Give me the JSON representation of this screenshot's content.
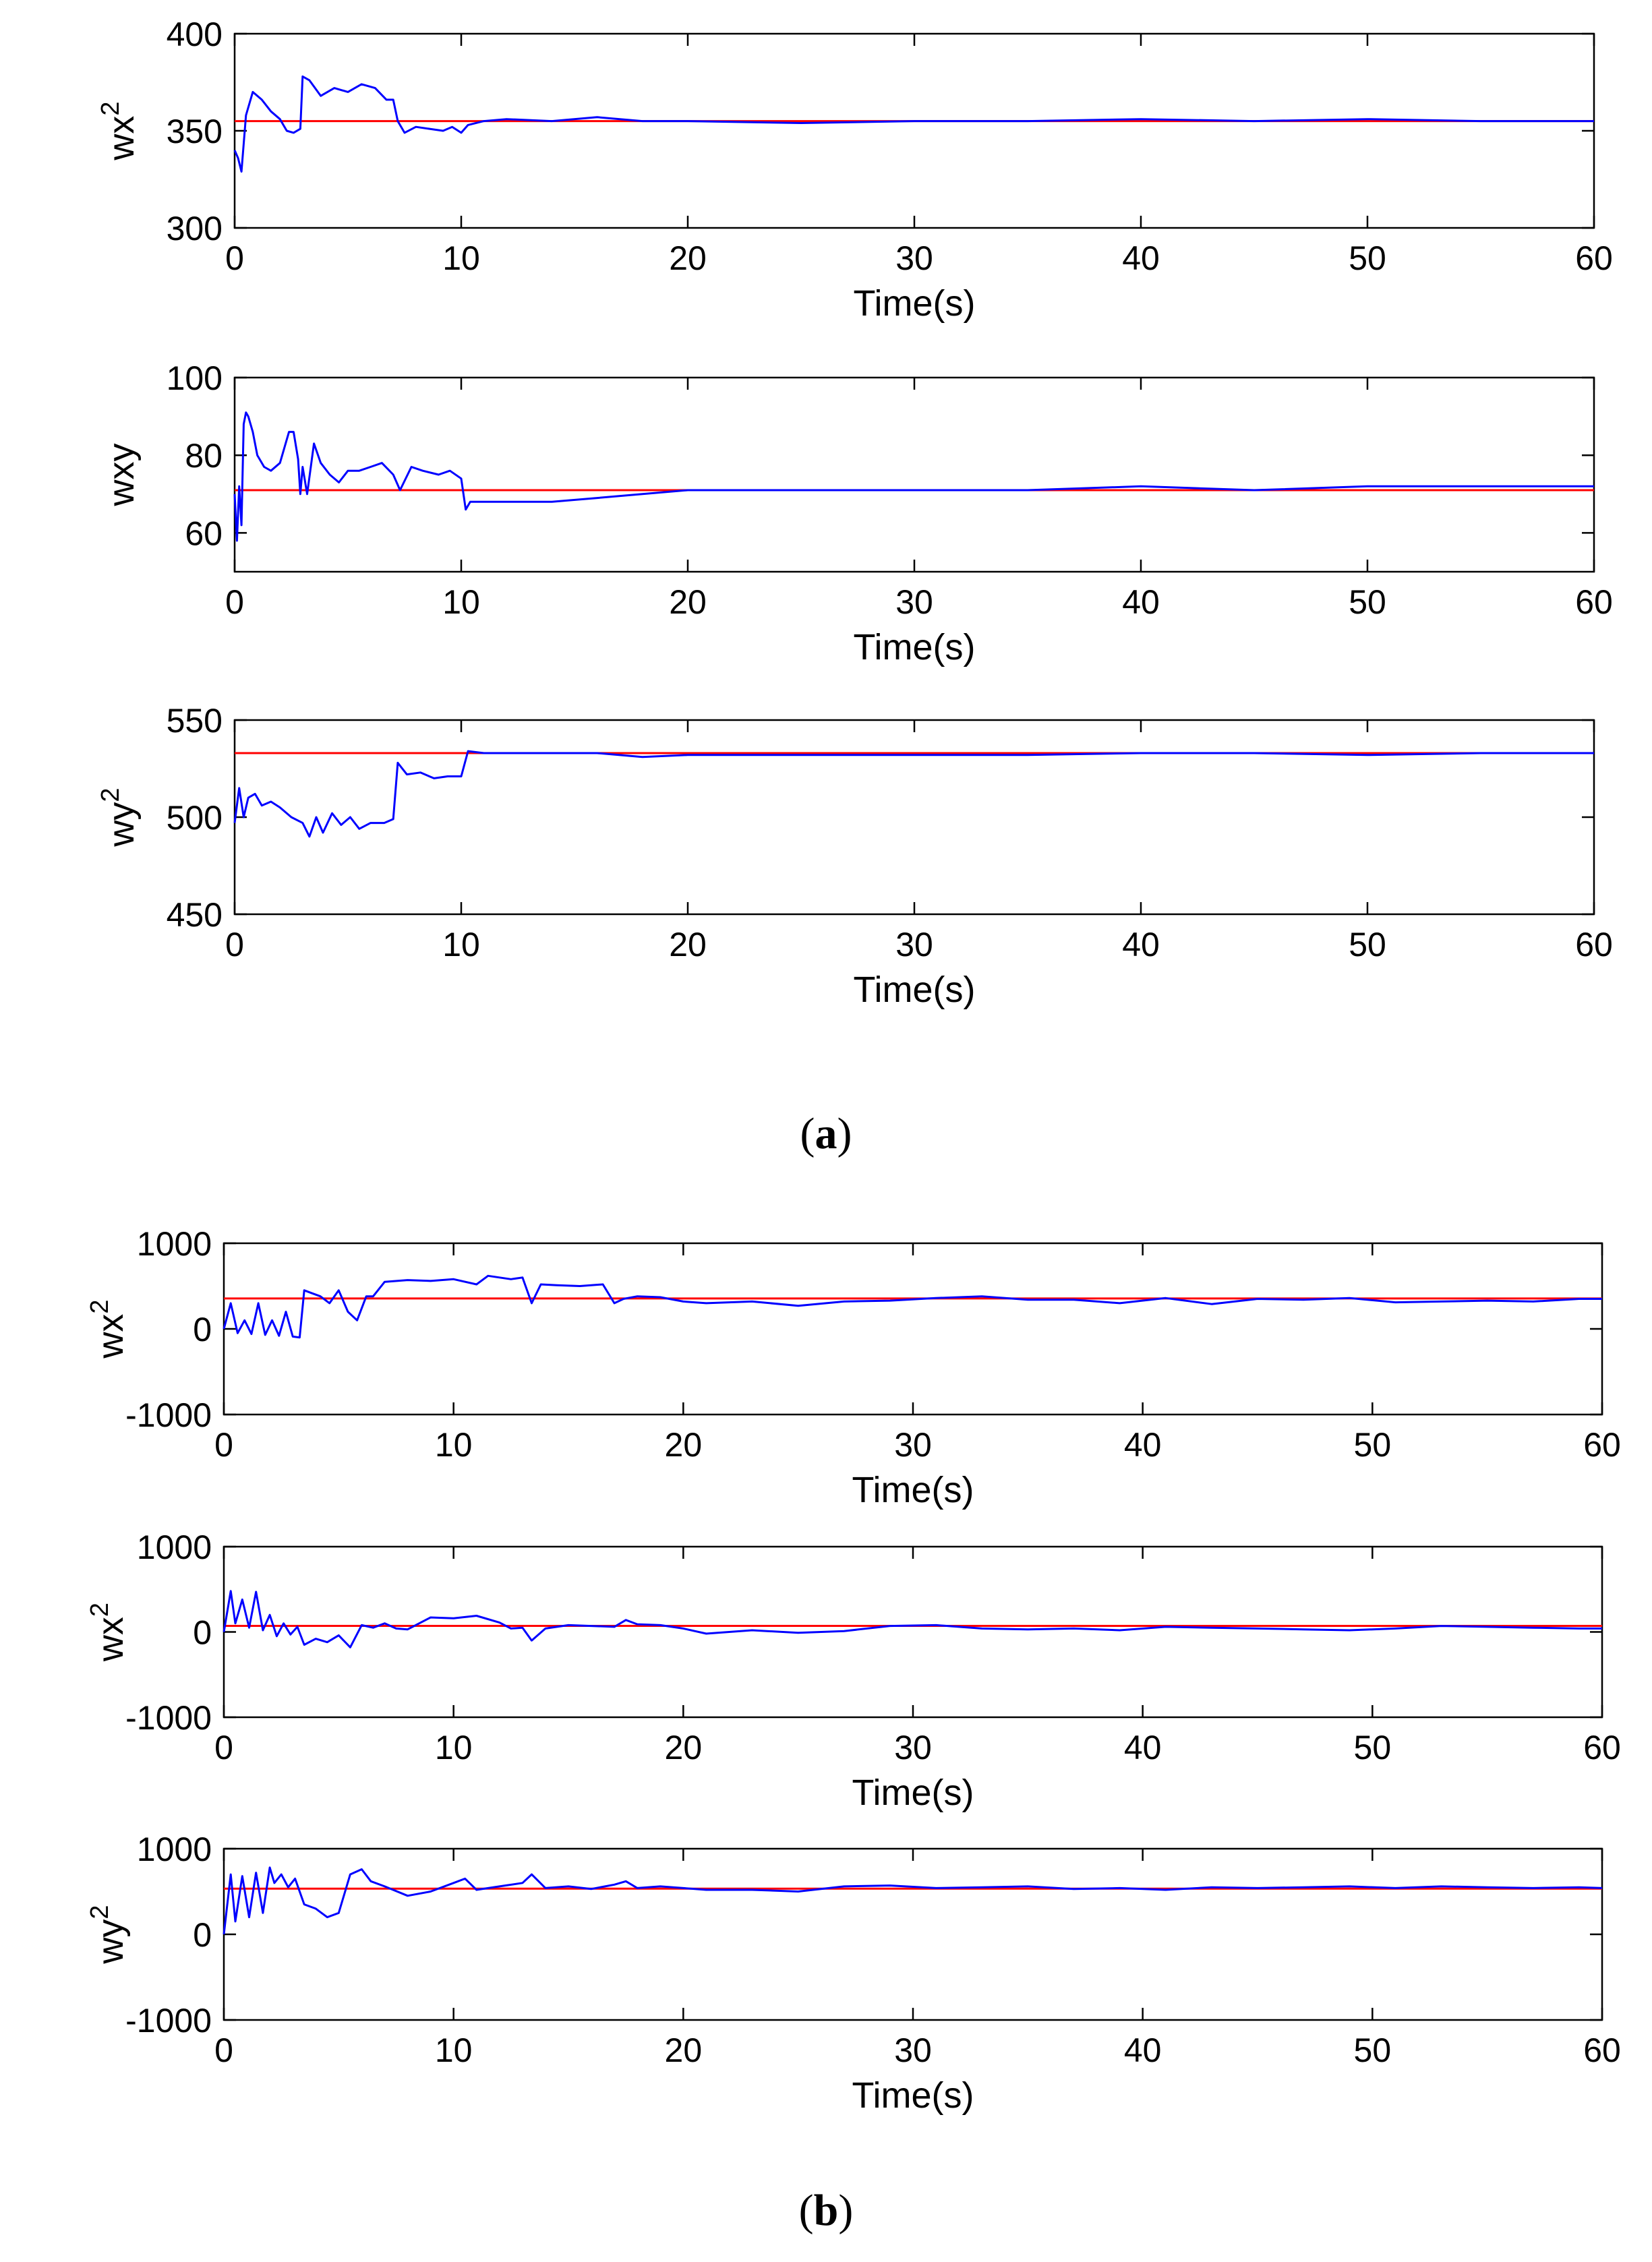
{
  "figure": {
    "panel_a_label": {
      "open": "(",
      "letter": "a",
      "close": ")"
    },
    "panel_b_label": {
      "open": "(",
      "letter": "b",
      "close": ")"
    },
    "colors": {
      "estimate": "#0000ff",
      "reference": "#ff0000",
      "axes": "#000000"
    }
  },
  "chart_data": [
    {
      "panel": "a",
      "index": 1,
      "type": "line",
      "xlabel": "Time(s)",
      "ylabel": "wx",
      "ylabel_sup": "2",
      "xlim": [
        0,
        60
      ],
      "ylim": [
        300,
        400
      ],
      "xticks": [
        0,
        10,
        20,
        30,
        40,
        50,
        60
      ],
      "yticks": [
        300,
        350,
        400
      ],
      "reference": 355,
      "series": [
        {
          "name": "estimate",
          "x": [
            0,
            0.15,
            0.3,
            0.5,
            0.8,
            1.2,
            1.6,
            2.0,
            2.3,
            2.6,
            2.9,
            3.0,
            3.3,
            3.8,
            4.4,
            5.0,
            5.6,
            6.2,
            6.7,
            7.0,
            7.2,
            7.5,
            8.0,
            8.6,
            9.2,
            9.6,
            10.0,
            10.3,
            11,
            12,
            14,
            16,
            18,
            20,
            25,
            30,
            35,
            40,
            45,
            50,
            55,
            60
          ],
          "y": [
            340,
            336,
            329,
            358,
            370,
            366,
            360,
            356,
            350,
            349,
            351,
            378,
            376,
            368,
            372,
            370,
            374,
            372,
            366,
            366,
            355,
            349,
            352,
            351,
            350,
            352,
            349,
            353,
            355,
            356,
            355,
            357,
            355,
            355,
            354,
            355,
            355,
            356,
            355,
            356,
            355,
            355
          ]
        }
      ]
    },
    {
      "panel": "a",
      "index": 2,
      "type": "line",
      "xlabel": "Time(s)",
      "ylabel": "wxy",
      "ylabel_sup": "",
      "xlim": [
        0,
        60
      ],
      "ylim": [
        50,
        100
      ],
      "xticks": [
        0,
        10,
        20,
        30,
        40,
        50,
        60
      ],
      "yticks": [
        60,
        80,
        100
      ],
      "reference": 71,
      "series": [
        {
          "name": "estimate",
          "x": [
            0,
            0.1,
            0.2,
            0.3,
            0.4,
            0.5,
            0.6,
            0.8,
            1.0,
            1.3,
            1.6,
            2.0,
            2.4,
            2.6,
            2.8,
            2.9,
            3.0,
            3.2,
            3.5,
            3.8,
            4.2,
            4.6,
            5.0,
            5.5,
            6.0,
            6.5,
            7.0,
            7.3,
            7.8,
            8.3,
            9.0,
            9.5,
            10.0,
            10.2,
            10.4,
            11,
            12,
            14,
            16,
            18,
            20,
            25,
            30,
            35,
            40,
            45,
            50,
            55,
            60
          ],
          "y": [
            70,
            58,
            72,
            62,
            88,
            91,
            90,
            86,
            80,
            77,
            76,
            78,
            86,
            86,
            79,
            70,
            77,
            70,
            83,
            78,
            75,
            73,
            76,
            76,
            77,
            78,
            75,
            71,
            77,
            76,
            75,
            76,
            74,
            66,
            68,
            68,
            68,
            68,
            69,
            70,
            71,
            71,
            71,
            71,
            72,
            71,
            72,
            72,
            72
          ]
        }
      ]
    },
    {
      "panel": "a",
      "index": 3,
      "type": "line",
      "xlabel": "Time(s)",
      "ylabel": "wy",
      "ylabel_sup": "2",
      "xlim": [
        0,
        60
      ],
      "ylim": [
        450,
        550
      ],
      "xticks": [
        0,
        10,
        20,
        30,
        40,
        50,
        60
      ],
      "yticks": [
        450,
        500,
        550
      ],
      "reference": 533,
      "series": [
        {
          "name": "estimate",
          "x": [
            0,
            0.2,
            0.4,
            0.6,
            0.9,
            1.2,
            1.6,
            2.0,
            2.5,
            3.0,
            3.3,
            3.6,
            3.9,
            4.3,
            4.7,
            5.1,
            5.5,
            6.0,
            6.6,
            7.0,
            7.2,
            7.6,
            8.2,
            8.8,
            9.4,
            10.0,
            10.3,
            11,
            12,
            14,
            16,
            18,
            20,
            25,
            30,
            35,
            40,
            45,
            50,
            55,
            60
          ],
          "y": [
            497,
            515,
            500,
            510,
            512,
            506,
            508,
            505,
            500,
            497,
            490,
            500,
            492,
            502,
            496,
            500,
            494,
            497,
            497,
            499,
            528,
            522,
            523,
            520,
            521,
            521,
            534,
            533,
            533,
            533,
            533,
            531,
            532,
            532,
            532,
            532,
            533,
            533,
            532,
            533,
            533
          ]
        }
      ]
    },
    {
      "panel": "b",
      "index": 1,
      "type": "line",
      "xlabel": "Time(s)",
      "ylabel": "wx",
      "ylabel_sup": "2",
      "xlim": [
        0,
        60
      ],
      "ylim": [
        -1000,
        1000
      ],
      "xticks": [
        0,
        10,
        20,
        30,
        40,
        50,
        60
      ],
      "yticks": [
        -1000,
        0,
        1000
      ],
      "reference": 355,
      "series": [
        {
          "name": "estimate",
          "x": [
            0,
            0.3,
            0.6,
            0.9,
            1.2,
            1.5,
            1.8,
            2.1,
            2.4,
            2.7,
            3.0,
            3.3,
            3.5,
            3.8,
            4.2,
            4.6,
            5.0,
            5.4,
            5.8,
            6.2,
            6.5,
            7.0,
            8,
            9,
            10,
            11,
            11.5,
            12.5,
            13,
            13.4,
            13.8,
            14.5,
            15.5,
            16.5,
            17,
            17.4,
            18,
            19,
            20,
            21,
            23,
            25,
            27,
            29,
            31,
            33,
            35,
            37,
            39,
            41,
            43,
            45,
            47,
            49,
            51,
            53,
            55,
            57,
            59,
            60
          ],
          "y": [
            0,
            300,
            -50,
            100,
            -60,
            300,
            -70,
            100,
            -80,
            200,
            -90,
            -100,
            450,
            420,
            380,
            300,
            450,
            200,
            100,
            380,
            380,
            550,
            570,
            560,
            580,
            520,
            620,
            580,
            600,
            300,
            520,
            510,
            500,
            520,
            300,
            350,
            380,
            370,
            320,
            300,
            320,
            270,
            320,
            330,
            360,
            380,
            340,
            340,
            300,
            360,
            290,
            350,
            340,
            360,
            310,
            320,
            330,
            320,
            350,
            350
          ]
        }
      ]
    },
    {
      "panel": "b",
      "index": 2,
      "type": "line",
      "xlabel": "Time(s)",
      "ylabel": "wx",
      "ylabel_sup": "2",
      "xlim": [
        0,
        60
      ],
      "ylim": [
        -1000,
        1000
      ],
      "xticks": [
        0,
        10,
        20,
        30,
        40,
        50,
        60
      ],
      "yticks": [
        -1000,
        0,
        1000
      ],
      "reference": 71,
      "series": [
        {
          "name": "estimate",
          "x": [
            0,
            0.3,
            0.5,
            0.8,
            1.1,
            1.4,
            1.7,
            2.0,
            2.3,
            2.6,
            2.9,
            3.2,
            3.5,
            4.0,
            4.5,
            5.0,
            5.5,
            6.0,
            6.5,
            7.0,
            7.5,
            8,
            9,
            10,
            11,
            12,
            12.5,
            13,
            13.4,
            14,
            15,
            16,
            17,
            17.5,
            18,
            19,
            20,
            21,
            23,
            25,
            27,
            29,
            31,
            33,
            35,
            37,
            39,
            41,
            43,
            45,
            47,
            49,
            51,
            53,
            55,
            57,
            59,
            60
          ],
          "y": [
            0,
            480,
            100,
            380,
            50,
            470,
            20,
            200,
            -50,
            100,
            -30,
            60,
            -150,
            -80,
            -120,
            -40,
            -180,
            80,
            50,
            100,
            40,
            30,
            170,
            160,
            190,
            110,
            40,
            50,
            -100,
            40,
            80,
            70,
            60,
            140,
            90,
            80,
            40,
            -20,
            20,
            -10,
            10,
            70,
            80,
            40,
            30,
            40,
            20,
            60,
            50,
            40,
            30,
            20,
            40,
            70,
            60,
            50,
            40,
            40
          ]
        }
      ]
    },
    {
      "panel": "b",
      "index": 3,
      "type": "line",
      "xlabel": "Time(s)",
      "ylabel": "wy",
      "ylabel_sup": "2",
      "xlim": [
        0,
        60
      ],
      "ylim": [
        -1000,
        1000
      ],
      "xticks": [
        0,
        10,
        20,
        30,
        40,
        50,
        60
      ],
      "yticks": [
        -1000,
        0,
        1000
      ],
      "reference": 533,
      "series": [
        {
          "name": "estimate",
          "x": [
            0,
            0.3,
            0.5,
            0.8,
            1.1,
            1.4,
            1.7,
            2.0,
            2.2,
            2.5,
            2.8,
            3.1,
            3.5,
            4.0,
            4.5,
            5.0,
            5.5,
            6.0,
            6.4,
            7.0,
            8,
            9,
            10,
            10.5,
            11,
            12,
            13,
            13.4,
            14,
            15,
            16,
            17,
            17.5,
            18,
            19,
            20,
            21,
            23,
            25,
            27,
            29,
            31,
            33,
            35,
            37,
            39,
            41,
            43,
            45,
            47,
            49,
            51,
            53,
            55,
            57,
            59,
            60
          ],
          "y": [
            0,
            700,
            150,
            680,
            200,
            720,
            250,
            780,
            600,
            700,
            550,
            650,
            350,
            300,
            200,
            250,
            700,
            760,
            620,
            560,
            450,
            500,
            600,
            650,
            520,
            560,
            600,
            700,
            540,
            560,
            530,
            580,
            620,
            540,
            560,
            540,
            520,
            520,
            500,
            560,
            570,
            540,
            550,
            560,
            530,
            540,
            520,
            550,
            540,
            550,
            560,
            540,
            560,
            550,
            540,
            550,
            540
          ]
        }
      ]
    }
  ]
}
